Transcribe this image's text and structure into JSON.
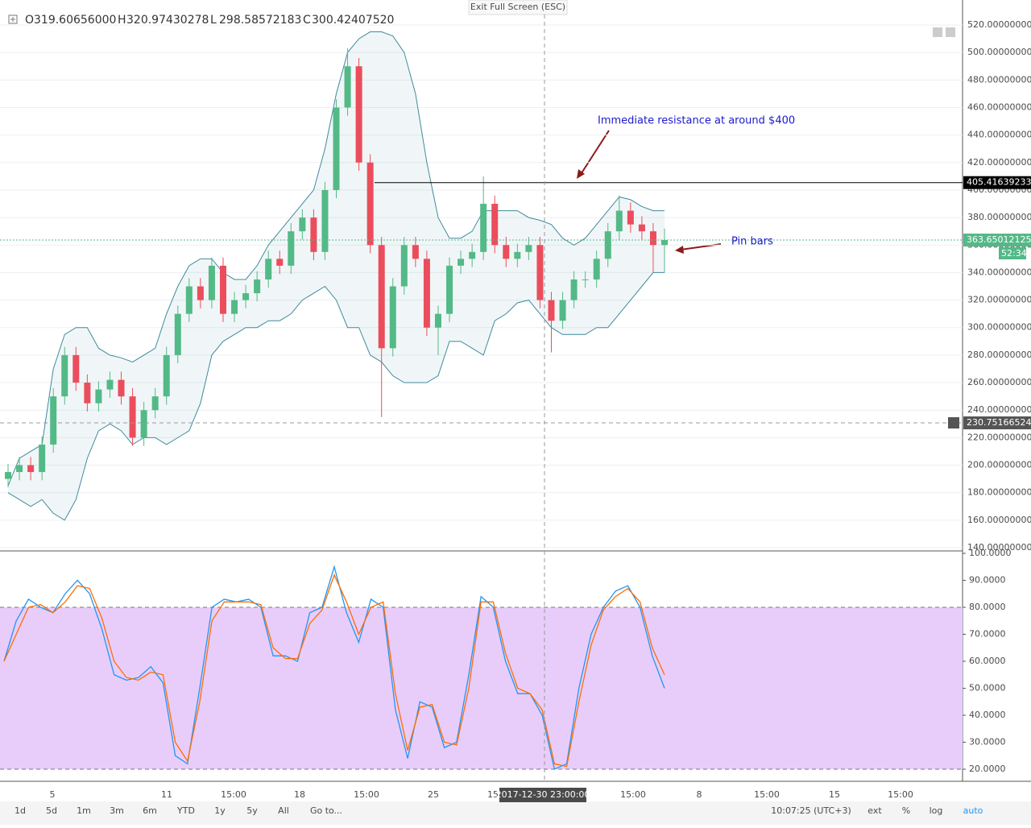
{
  "window": {
    "exit_label": "Exit Full Screen (ESC)"
  },
  "chart_data": {
    "type": "candlestick",
    "legend": [
      {
        "label": "O",
        "value": "319.60656000"
      },
      {
        "label": "H",
        "value": "320.97430278"
      },
      {
        "label": "L",
        "value": "298.58572183"
      },
      {
        "label": "C",
        "value": "300.42407520"
      }
    ],
    "up_color": "#53b987",
    "down_color": "#eb4d5c",
    "band_color": "#3f8a9c",
    "ohlc": [
      [
        190,
        201,
        184,
        195
      ],
      [
        195,
        206,
        189,
        200
      ],
      [
        200,
        206,
        189,
        195
      ],
      [
        195,
        221,
        189,
        215
      ],
      [
        215,
        256,
        209,
        250
      ],
      [
        250,
        286,
        244,
        280
      ],
      [
        280,
        286,
        254,
        260
      ],
      [
        260,
        266,
        239,
        245
      ],
      [
        245,
        261,
        239,
        255
      ],
      [
        255,
        268,
        249,
        262
      ],
      [
        262,
        268,
        244,
        250
      ],
      [
        250,
        256,
        214,
        220
      ],
      [
        220,
        246,
        214,
        240
      ],
      [
        240,
        256,
        234,
        250
      ],
      [
        250,
        286,
        244,
        280
      ],
      [
        280,
        316,
        274,
        310
      ],
      [
        310,
        336,
        304,
        330
      ],
      [
        330,
        336,
        314,
        320
      ],
      [
        320,
        351,
        314,
        345
      ],
      [
        345,
        351,
        304,
        310
      ],
      [
        310,
        326,
        304,
        320
      ],
      [
        320,
        331,
        314,
        325
      ],
      [
        325,
        341,
        319,
        335
      ],
      [
        335,
        356,
        329,
        350
      ],
      [
        350,
        356,
        339,
        345
      ],
      [
        345,
        376,
        339,
        370
      ],
      [
        370,
        386,
        364,
        380
      ],
      [
        380,
        386,
        349,
        355
      ],
      [
        355,
        406,
        349,
        400
      ],
      [
        400,
        466,
        394,
        460
      ],
      [
        460,
        503,
        454,
        490
      ],
      [
        490,
        496,
        414,
        420
      ],
      [
        420,
        426,
        354,
        360
      ],
      [
        360,
        366,
        235,
        285
      ],
      [
        285,
        336,
        279,
        330
      ],
      [
        330,
        366,
        324,
        360
      ],
      [
        360,
        366,
        344,
        350
      ],
      [
        350,
        356,
        294,
        300
      ],
      [
        300,
        316,
        280,
        310
      ],
      [
        310,
        351,
        304,
        345
      ],
      [
        345,
        356,
        339,
        350
      ],
      [
        350,
        361,
        344,
        355
      ],
      [
        355,
        410,
        349,
        390
      ],
      [
        390,
        396,
        354,
        360
      ],
      [
        360,
        366,
        344,
        350
      ],
      [
        350,
        361,
        344,
        355
      ],
      [
        355,
        366,
        349,
        360
      ],
      [
        360,
        366,
        314,
        320
      ],
      [
        320,
        326,
        282,
        305
      ],
      [
        305,
        326,
        299,
        320
      ],
      [
        320,
        341,
        314,
        335
      ],
      [
        335,
        341,
        329,
        335
      ],
      [
        335,
        356,
        329,
        350
      ],
      [
        350,
        376,
        344,
        370
      ],
      [
        370,
        396,
        364,
        385
      ],
      [
        385,
        391,
        369,
        375
      ],
      [
        375,
        381,
        364,
        370
      ],
      [
        370,
        376,
        340,
        360
      ],
      [
        360,
        372,
        340,
        363.65
      ]
    ],
    "bb_upper": [
      185,
      205,
      210,
      215,
      270,
      295,
      300,
      300,
      285,
      280,
      278,
      275,
      280,
      285,
      310,
      330,
      345,
      350,
      350,
      340,
      335,
      335,
      345,
      360,
      370,
      380,
      390,
      400,
      430,
      470,
      500,
      510,
      515,
      515,
      512,
      500,
      470,
      420,
      380,
      365,
      365,
      370,
      385,
      385,
      385,
      385,
      380,
      378,
      375,
      365,
      360,
      365,
      375,
      385,
      395,
      393,
      388,
      385,
      385
    ],
    "bb_lower": [
      180,
      175,
      170,
      175,
      165,
      160,
      175,
      205,
      225,
      230,
      225,
      215,
      220,
      220,
      215,
      220,
      225,
      245,
      280,
      290,
      295,
      300,
      300,
      305,
      305,
      310,
      320,
      325,
      330,
      320,
      300,
      300,
      280,
      275,
      265,
      260,
      260,
      260,
      265,
      290,
      290,
      285,
      280,
      305,
      310,
      318,
      320,
      310,
      300,
      295,
      295,
      295,
      300,
      300,
      310,
      320,
      330,
      340,
      340
    ],
    "ylim": [
      140,
      520
    ],
    "yticks": [
      {
        "value": 140,
        "label": "140.00000000"
      },
      {
        "value": 160,
        "label": "160.00000000"
      },
      {
        "value": 180,
        "label": "180.00000000"
      },
      {
        "value": 200,
        "label": "200.00000000"
      },
      {
        "value": 220,
        "label": "220.00000000"
      },
      {
        "value": 240,
        "label": "240.00000000"
      },
      {
        "value": 260,
        "label": "260.00000000"
      },
      {
        "value": 280,
        "label": "280.00000000"
      },
      {
        "value": 300,
        "label": "300.00000000"
      },
      {
        "value": 320,
        "label": "320.00000000"
      },
      {
        "value": 340,
        "label": "340.00000000"
      },
      {
        "value": 360,
        "label": "360.00000000"
      },
      {
        "value": 380,
        "label": "380.00000000"
      },
      {
        "value": 400,
        "label": "400.00000000"
      },
      {
        "value": 420,
        "label": "420.00000000"
      },
      {
        "value": 440,
        "label": "440.00000000"
      },
      {
        "value": 460,
        "label": "460.00000000"
      },
      {
        "value": 480,
        "label": "480.00000000"
      },
      {
        "value": 500,
        "label": "500.00000000"
      },
      {
        "value": 520,
        "label": "520.00000000"
      }
    ],
    "price_labels": [
      405.41639233,
      363.65012125,
      230.75166524
    ],
    "countdown": "52:34",
    "annotations": [
      "Immediate resistance at around $400",
      "Pin bars"
    ],
    "xticks": [
      "5",
      "11",
      "15:00",
      "18",
      "15:00",
      "25",
      "15",
      "15:00",
      "8",
      "15:00",
      "15",
      "15:00"
    ],
    "crosshair_label": "2017-12-30 23:00:00"
  },
  "stoch": {
    "type": "line",
    "series": [
      {
        "color": "#2196f3",
        "values": [
          60,
          75,
          83,
          80,
          78,
          85,
          90,
          85,
          72,
          55,
          53,
          54,
          58,
          52,
          25,
          22,
          50,
          80,
          83,
          82,
          83,
          80,
          62,
          62,
          60,
          78,
          80,
          95,
          78,
          67,
          83,
          80,
          42,
          24,
          45,
          43,
          28,
          30,
          55,
          84,
          80,
          60,
          48,
          48,
          40,
          20,
          22,
          50,
          70,
          80,
          86,
          88,
          80,
          62,
          50
        ]
      },
      {
        "color": "#ff6d00",
        "values": [
          60,
          70,
          80,
          81,
          78,
          82,
          88,
          87,
          76,
          60,
          54,
          53,
          56,
          55,
          30,
          23,
          45,
          75,
          82,
          82,
          82,
          81,
          65,
          61,
          61,
          74,
          79,
          92,
          82,
          70,
          80,
          82,
          48,
          27,
          43,
          44,
          30,
          29,
          50,
          82,
          82,
          63,
          50,
          48,
          42,
          22,
          21,
          45,
          66,
          79,
          84,
          87,
          82,
          65,
          55
        ]
      }
    ],
    "ylim": [
      20,
      100
    ],
    "band": [
      20,
      80
    ],
    "band_color": "#e8cdfb",
    "yticks": [
      {
        "value": 20,
        "label": "20.0000"
      },
      {
        "value": 30,
        "label": "30.0000"
      },
      {
        "value": 40,
        "label": "40.0000"
      },
      {
        "value": 50,
        "label": "50.0000"
      },
      {
        "value": 60,
        "label": "60.0000"
      },
      {
        "value": 70,
        "label": "70.0000"
      },
      {
        "value": 80,
        "label": "80.0000"
      },
      {
        "value": 90,
        "label": "90.0000"
      },
      {
        "value": 100,
        "label": "100.0000"
      }
    ]
  },
  "toolbar": {
    "ranges": [
      "1d",
      "5d",
      "1m",
      "3m",
      "6m",
      "YTD",
      "1y",
      "5y",
      "All",
      "Go to..."
    ],
    "time": "10:07:25 (UTC+3)",
    "options": [
      "ext",
      "%",
      "log",
      "auto"
    ]
  }
}
